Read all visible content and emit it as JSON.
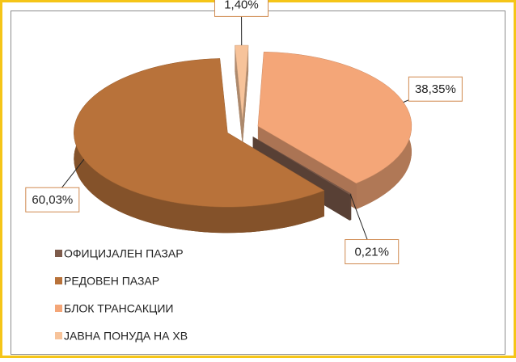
{
  "chart_data": {
    "type": "pie",
    "categories": [
      "ОФИЦИЈАЛЕН ПАЗАР",
      "РЕДОВЕН ПАЗАР",
      "БЛОК ТРАНСАКЦИИ",
      "ЈАВНА ПОНУДА НА ХВ"
    ],
    "values": [
      0.21,
      60.03,
      38.35,
      1.4
    ],
    "value_labels": [
      "0,21%",
      "60,03%",
      "38,35%",
      "1,40%"
    ],
    "colors": [
      "#7d5b4b",
      "#b8723a",
      "#f4a678",
      "#f7c39a"
    ],
    "legend": "bottom-left"
  }
}
